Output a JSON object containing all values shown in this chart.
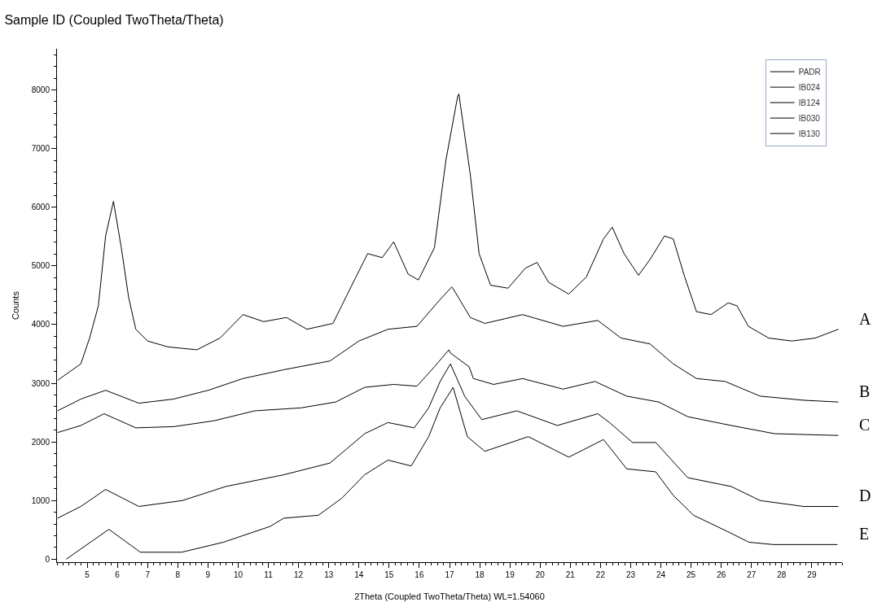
{
  "chart_data": {
    "type": "line",
    "title": "Sample ID (Coupled TwoTheta/Theta)",
    "xlabel": "2Theta (Coupled TwoTheta/Theta) WL=1.54060",
    "ylabel": "Counts",
    "xlim": [
      4,
      30
    ],
    "xticks": [
      5,
      6,
      7,
      8,
      9,
      10,
      11,
      12,
      13,
      14,
      15,
      16,
      17,
      18,
      19,
      20,
      21,
      22,
      23,
      24,
      25,
      26,
      27,
      28,
      29
    ],
    "ylim": [
      -50,
      8700
    ],
    "yticks": [
      0,
      1000,
      2000,
      3000,
      4000,
      5000,
      6000,
      7000,
      8000
    ],
    "grid": false,
    "legend": "top right",
    "line_style": "solid",
    "annotations": [
      "A",
      "B",
      "C",
      "D",
      "E"
    ],
    "series": [
      {
        "name": "PADR",
        "color": "#000000",
        "x": [
          4.02,
          4.79,
          5.08,
          5.37,
          5.61,
          5.87,
          6.13,
          6.37,
          6.61,
          7.0,
          7.67,
          8.63,
          9.4,
          10.16,
          10.84,
          11.6,
          12.28,
          13.14,
          13.62,
          14.29,
          14.77,
          15.15,
          15.63,
          15.97,
          16.5,
          16.88,
          17.27,
          17.31,
          17.69,
          17.98,
          18.36,
          18.94,
          19.51,
          19.9,
          20.28,
          20.95,
          21.53,
          22.1,
          22.39,
          22.78,
          23.26,
          23.64,
          24.12,
          24.41,
          24.79,
          25.18,
          25.66,
          26.23,
          26.52,
          26.9,
          27.57,
          28.34,
          29.11,
          29.88
        ],
        "values": [
          3050,
          3330,
          3770,
          4320,
          5510,
          6100,
          5310,
          4470,
          3920,
          3720,
          3620,
          3570,
          3770,
          4170,
          4050,
          4120,
          3920,
          4020,
          4520,
          5210,
          5140,
          5410,
          4860,
          4760,
          5310,
          6800,
          7890,
          7930,
          6550,
          5210,
          4670,
          4620,
          4960,
          5060,
          4720,
          4520,
          4810,
          5460,
          5660,
          5210,
          4840,
          5110,
          5510,
          5460,
          4810,
          4220,
          4170,
          4370,
          4320,
          3970,
          3770,
          3720,
          3770,
          3920
        ]
      },
      {
        "name": "IB024",
        "color": "#000000",
        "x": [
          4.02,
          4.79,
          5.61,
          6.71,
          7.86,
          9.01,
          10.16,
          11.51,
          13.04,
          14.0,
          14.96,
          15.92,
          16.59,
          17.07,
          17.11,
          17.69,
          18.17,
          19.42,
          20.76,
          21.91,
          22.68,
          23.64,
          24.41,
          25.18,
          26.13,
          27.29,
          28.73,
          29.88
        ],
        "values": [
          2530,
          2730,
          2880,
          2660,
          2730,
          2880,
          3080,
          3230,
          3380,
          3720,
          3920,
          3970,
          4370,
          4640,
          4620,
          4120,
          4020,
          4170,
          3970,
          4070,
          3770,
          3670,
          3330,
          3080,
          3030,
          2780,
          2710,
          2680
        ]
      },
      {
        "name": "IB124",
        "color": "#000000",
        "x": [
          4.02,
          4.79,
          5.56,
          6.61,
          7.86,
          9.2,
          10.55,
          12.08,
          13.23,
          14.19,
          15.15,
          15.92,
          16.5,
          16.98,
          17.02,
          17.65,
          17.79,
          18.46,
          19.42,
          20.76,
          21.82,
          22.87,
          23.93,
          24.89,
          26.33,
          27.77,
          29.88
        ],
        "values": [
          2160,
          2280,
          2480,
          2240,
          2260,
          2360,
          2530,
          2580,
          2680,
          2930,
          2980,
          2950,
          3280,
          3570,
          3520,
          3280,
          3080,
          2980,
          3080,
          2900,
          3030,
          2780,
          2680,
          2430,
          2280,
          2140,
          2110
        ]
      },
      {
        "name": "IB030",
        "color": "#000000",
        "x": [
          4.02,
          4.79,
          5.61,
          6.71,
          8.15,
          9.59,
          11.51,
          13.04,
          14.19,
          14.96,
          15.83,
          16.31,
          16.69,
          17.03,
          17.46,
          17.5,
          18.07,
          19.23,
          20.57,
          21.91,
          22.3,
          23.06,
          23.83,
          24.89,
          26.33,
          27.29,
          28.73,
          29.88
        ],
        "values": [
          700,
          900,
          1190,
          900,
          1000,
          1240,
          1440,
          1640,
          2140,
          2330,
          2240,
          2580,
          3030,
          3330,
          2830,
          2780,
          2380,
          2530,
          2280,
          2480,
          2330,
          1990,
          1990,
          1390,
          1240,
          1000,
          900,
          900
        ]
      },
      {
        "name": "IB130",
        "color": "#000000",
        "x": [
          4.3,
          5.72,
          6.76,
          8.13,
          9.51,
          11.06,
          11.51,
          12.66,
          13.43,
          14.19,
          14.96,
          15.73,
          16.31,
          16.69,
          17.12,
          17.59,
          18.17,
          19.61,
          20.95,
          22.1,
          22.87,
          23.83,
          24.41,
          25.08,
          26.22,
          26.92,
          27.73,
          29.85
        ],
        "values": [
          0,
          510,
          120,
          120,
          290,
          560,
          700,
          750,
          1040,
          1440,
          1690,
          1590,
          2090,
          2580,
          2930,
          2090,
          1840,
          2090,
          1740,
          2040,
          1540,
          1490,
          1090,
          750,
          470,
          290,
          250,
          250
        ]
      }
    ]
  }
}
